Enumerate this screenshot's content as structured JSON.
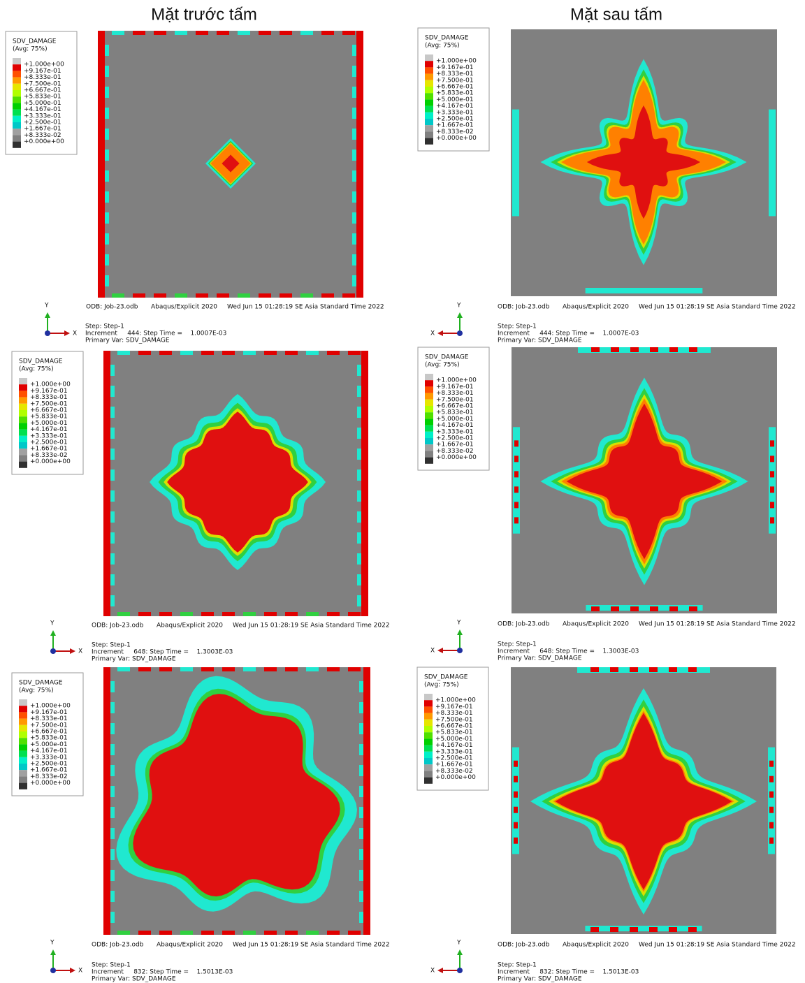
{
  "columns": [
    "Mặt trước tấm",
    "Mặt sau tấm"
  ],
  "legend": {
    "title": "SDV_DAMAGE",
    "subtitle": "(Avg: 75%)",
    "labels": [
      "+1.000e+00",
      "+9.167e-01",
      "+8.333e-01",
      "+7.500e-01",
      "+6.667e-01",
      "+5.833e-01",
      "+5.000e-01",
      "+4.167e-01",
      "+3.333e-01",
      "+2.500e-01",
      "+1.667e-01",
      "+8.333e-02",
      "+0.000e+00"
    ]
  },
  "odb_line": {
    "odb": "ODB: Job-23.odb",
    "solver": "Abaqus/Explicit 2020",
    "date": "Wed Jun 15 01:28:19 SE Asia Standard Time 2022"
  },
  "axes": {
    "x": "X",
    "y": "Y"
  },
  "rows": [
    {
      "step": "Step: Step-1",
      "increment": "Increment     444: Step Time =    1.0007E-03",
      "primary_var": "Primary Var: SDV_DAMAGE"
    },
    {
      "step": "Step: Step-1",
      "increment": "Increment     648: Step Time =    1.3003E-03",
      "primary_var": "Primary Var: SDV_DAMAGE"
    },
    {
      "step": "Step: Step-1",
      "increment": "Increment     832: Step Time =    1.5013E-03",
      "primary_var": "Primary Var: SDV_DAMAGE"
    }
  ]
}
